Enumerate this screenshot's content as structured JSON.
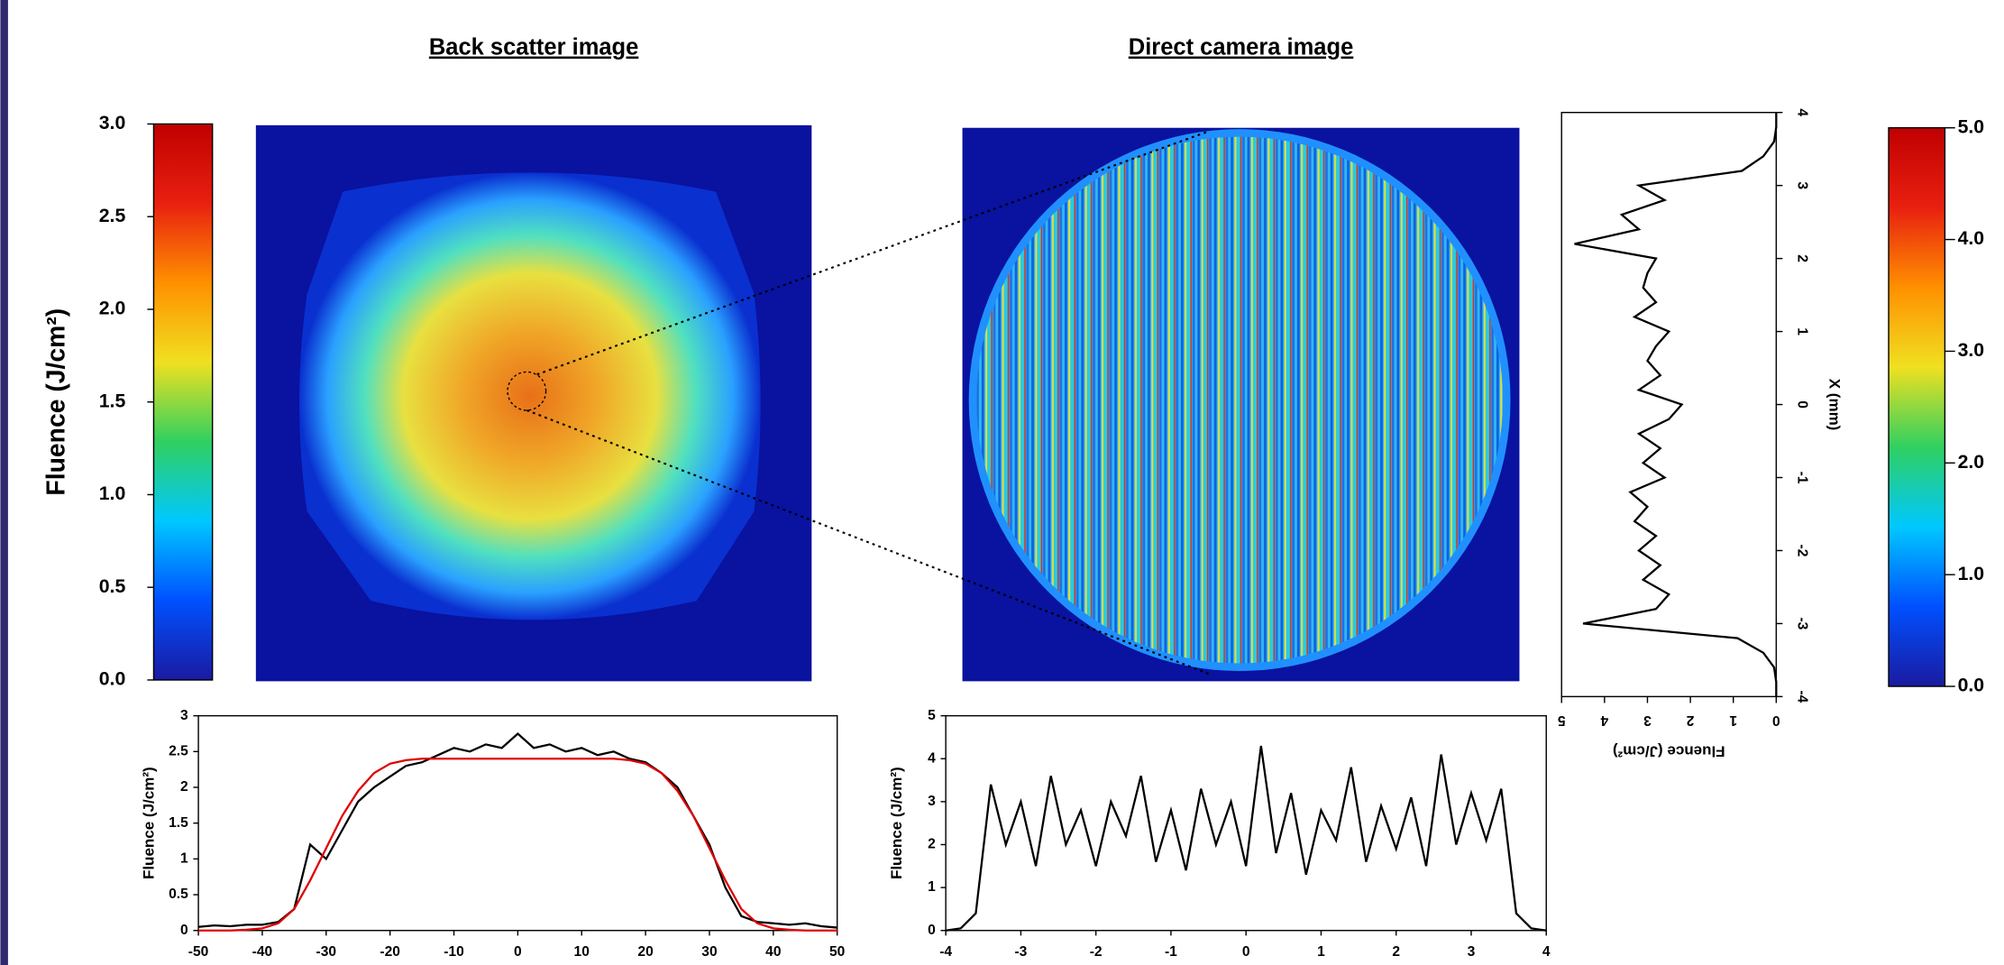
{
  "chart_data": [
    {
      "type": "colorbar",
      "ylabel": "Fluence (J/cm²)",
      "ylim": [
        0,
        3
      ],
      "yticks": [
        {
          "value": 0,
          "label": "0.0"
        },
        {
          "value": 0.5,
          "label": "0.5"
        },
        {
          "value": 1,
          "label": "1.0"
        },
        {
          "value": 1.5,
          "label": "1.5"
        },
        {
          "value": 2,
          "label": "2.0"
        },
        {
          "value": 2.5,
          "label": "2.5"
        },
        {
          "value": 3,
          "label": "3.0"
        }
      ],
      "colors": [
        "#1a1aa0",
        "#0050ff",
        "#00c8ff",
        "#30d060",
        "#f0e020",
        "#ff9000",
        "#e82010",
        "#c00000"
      ]
    },
    {
      "type": "image",
      "title": "Back scatter image"
    },
    {
      "type": "image",
      "title": "Direct camera image"
    },
    {
      "type": "line",
      "ylabel": "Fluence (J/cm²)",
      "xlim": [
        -50,
        50
      ],
      "xticks": [
        -50,
        -40,
        -30,
        -20,
        -10,
        0,
        10,
        20,
        30,
        40,
        50
      ],
      "ylim": [
        0,
        3
      ],
      "yticks": [
        0,
        0.5,
        1,
        1.5,
        2,
        2.5,
        3
      ],
      "x": [
        -50,
        -47.5,
        -45,
        -42.5,
        -40,
        -37.5,
        -35,
        -32.5,
        -30,
        -27.5,
        -25,
        -22.5,
        -20,
        -17.5,
        -15,
        -12.5,
        -10,
        -7.5,
        -5,
        -2.5,
        0,
        2.5,
        5,
        7.5,
        10,
        12.5,
        15,
        17.5,
        20,
        22.5,
        25,
        27.5,
        30,
        32.5,
        35,
        37.5,
        40,
        42.5,
        45,
        47.5,
        50
      ],
      "series": [
        {
          "color": "#000000",
          "values": [
            0.05,
            0.07,
            0.06,
            0.08,
            0.08,
            0.12,
            0.3,
            1.2,
            1.0,
            1.4,
            1.8,
            2.0,
            2.15,
            2.3,
            2.35,
            2.45,
            2.55,
            2.5,
            2.6,
            2.55,
            2.75,
            2.55,
            2.6,
            2.5,
            2.55,
            2.45,
            2.5,
            2.4,
            2.35,
            2.2,
            2.0,
            1.6,
            1.2,
            0.6,
            0.2,
            0.12,
            0.1,
            0.08,
            0.1,
            0.06,
            0.04
          ]
        },
        {
          "color": "#e00000",
          "values": [
            0,
            0,
            0,
            0.01,
            0.03,
            0.1,
            0.3,
            0.7,
            1.15,
            1.6,
            1.95,
            2.2,
            2.33,
            2.38,
            2.4,
            2.4,
            2.4,
            2.4,
            2.4,
            2.4,
            2.4,
            2.4,
            2.4,
            2.4,
            2.4,
            2.4,
            2.4,
            2.38,
            2.33,
            2.2,
            1.95,
            1.6,
            1.15,
            0.7,
            0.3,
            0.1,
            0.03,
            0.01,
            0,
            0,
            0
          ]
        }
      ]
    },
    {
      "type": "line",
      "ylabel": "Fluence (J/cm²)",
      "xlim": [
        -4,
        4
      ],
      "xticks": [
        -4,
        -3,
        -2,
        -1,
        0,
        1,
        2,
        3,
        4
      ],
      "ylim": [
        0,
        5
      ],
      "yticks": [
        0,
        1,
        2,
        3,
        4,
        5
      ],
      "x": [
        -4,
        -3.8,
        -3.6,
        -3.4,
        -3.2,
        -3,
        -2.8,
        -2.6,
        -2.4,
        -2.2,
        -2,
        -1.8,
        -1.6,
        -1.4,
        -1.2,
        -1,
        -0.8,
        -0.6,
        -0.4,
        -0.2,
        0,
        0.2,
        0.4,
        0.6,
        0.8,
        1,
        1.2,
        1.4,
        1.6,
        1.8,
        2,
        2.2,
        2.4,
        2.6,
        2.8,
        3,
        3.2,
        3.4,
        3.6,
        3.8,
        4
      ],
      "series": [
        {
          "color": "#000000",
          "values": [
            0,
            0.05,
            0.4,
            3.4,
            2.0,
            3.0,
            1.5,
            3.6,
            2.0,
            2.8,
            1.5,
            3.0,
            2.2,
            3.6,
            1.6,
            2.8,
            1.4,
            3.3,
            2.0,
            3.0,
            1.5,
            4.3,
            1.8,
            3.2,
            1.3,
            2.8,
            2.1,
            3.8,
            1.6,
            2.9,
            1.9,
            3.1,
            1.5,
            4.1,
            2.0,
            3.2,
            2.1,
            3.3,
            0.4,
            0.05,
            0
          ]
        }
      ]
    },
    {
      "type": "profile",
      "xlabel": "X (mm)",
      "ylabel": "Fluence (J/cm²)",
      "value_axis_reversed": true,
      "xlim": [
        -4,
        4
      ],
      "xticks": [
        -4,
        -3,
        -2,
        -1,
        0,
        1,
        2,
        3,
        4
      ],
      "ylim": [
        0,
        5
      ],
      "yticks": [
        0,
        1,
        2,
        3,
        4,
        5
      ],
      "x": [
        -4,
        -3.8,
        -3.6,
        -3.4,
        -3.2,
        -3,
        -2.8,
        -2.6,
        -2.4,
        -2.2,
        -2,
        -1.8,
        -1.6,
        -1.4,
        -1.2,
        -1,
        -0.8,
        -0.6,
        -0.4,
        -0.2,
        0,
        0.2,
        0.4,
        0.6,
        0.8,
        1,
        1.2,
        1.4,
        1.6,
        1.8,
        2,
        2.2,
        2.4,
        2.6,
        2.8,
        3,
        3.2,
        3.4,
        3.6,
        3.8,
        4
      ],
      "series": [
        {
          "color": "#000000",
          "values": [
            0,
            0,
            0.05,
            0.3,
            0.9,
            4.5,
            2.8,
            2.5,
            3.1,
            2.7,
            3.2,
            2.8,
            3.3,
            3.0,
            3.4,
            2.6,
            3.1,
            2.7,
            3.2,
            2.5,
            2.2,
            3.2,
            2.7,
            3.0,
            2.8,
            2.5,
            3.3,
            2.8,
            3.1,
            3.0,
            2.8,
            4.7,
            3.2,
            3.6,
            2.6,
            3.2,
            0.8,
            0.3,
            0.05,
            0,
            0
          ]
        }
      ]
    },
    {
      "type": "colorbar",
      "ylim": [
        0,
        5
      ],
      "yticks": [
        {
          "value": 0,
          "label": "0.0"
        },
        {
          "value": 1,
          "label": "1.0"
        },
        {
          "value": 2,
          "label": "2.0"
        },
        {
          "value": 3,
          "label": "3.0"
        },
        {
          "value": 4,
          "label": "4.0"
        },
        {
          "value": 5,
          "label": "5.0"
        }
      ],
      "colors": [
        "#1a1aa0",
        "#0050ff",
        "#00c8ff",
        "#30d060",
        "#f0e020",
        "#ff9000",
        "#e82010",
        "#c00000"
      ]
    }
  ]
}
